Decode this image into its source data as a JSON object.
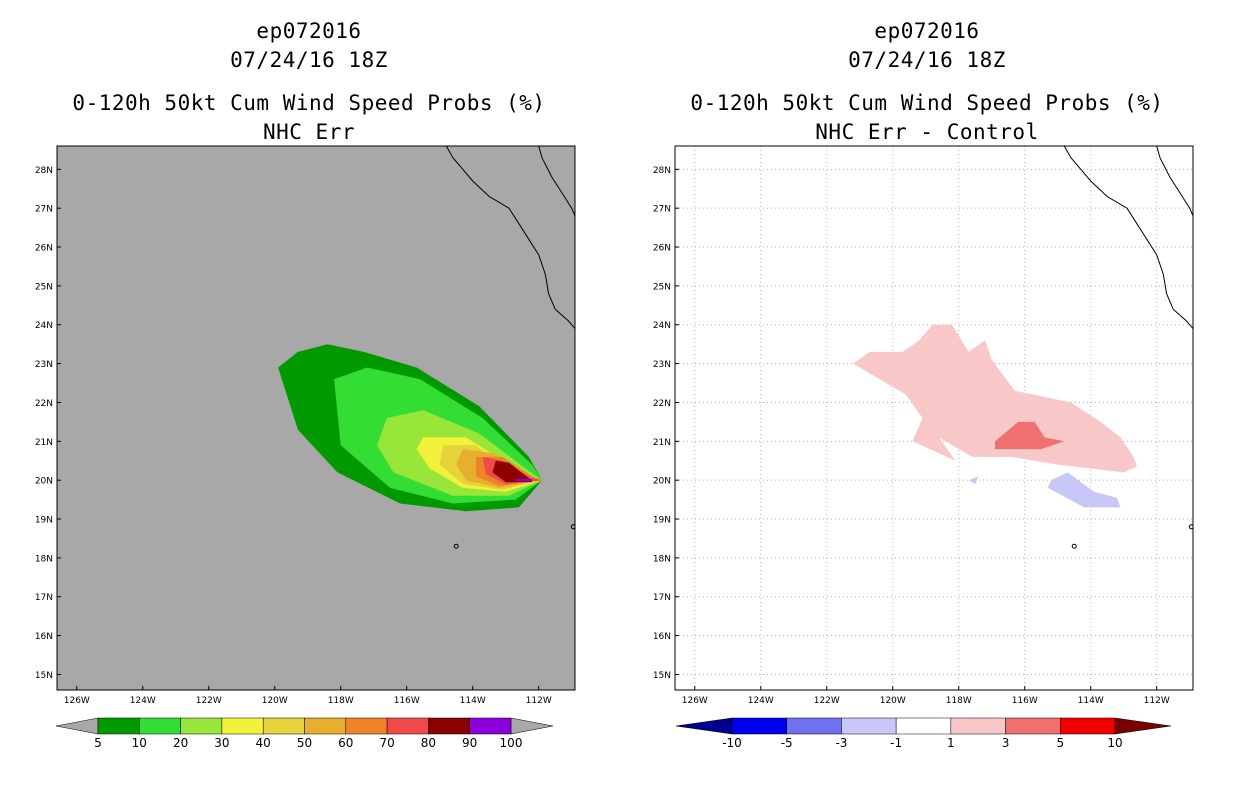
{
  "panels": [
    {
      "id": "left",
      "title_line1": "ep072016",
      "title_line2": "07/24/16 18Z",
      "title_line3": "0-120h 50kt Cum Wind Speed Probs (%)",
      "title_line4": "NHC Err",
      "background_color": "#a8a8a8"
    },
    {
      "id": "right",
      "title_line1": "ep072016",
      "title_line2": "07/24/16 18Z",
      "title_line3": "0-120h 50kt Cum Wind Speed Probs (%)",
      "title_line4": "NHC Err - Control",
      "background_color": "#ffffff"
    }
  ],
  "chart_data": [
    {
      "type": "heatmap",
      "title": "0-120h 50kt Cum Wind Speed Probs (%)",
      "subtitle": "NHC Err",
      "storm": "ep072016",
      "time": "07/24/16 18Z",
      "x_axis": {
        "range": [
          -126.6,
          -110.9
        ],
        "ticks": [
          -126,
          -124,
          -122,
          -120,
          -118,
          -116,
          -114,
          -112
        ],
        "tick_labels": [
          "126W",
          "124W",
          "122W",
          "120W",
          "118W",
          "116W",
          "114W",
          "112W"
        ]
      },
      "y_axis": {
        "range": [
          14.6,
          28.6
        ],
        "ticks": [
          15,
          16,
          17,
          18,
          19,
          20,
          21,
          22,
          23,
          24,
          25,
          26,
          27,
          28
        ],
        "tick_labels": [
          "15N",
          "16N",
          "17N",
          "18N",
          "19N",
          "20N",
          "21N",
          "22N",
          "23N",
          "24N",
          "25N",
          "26N",
          "27N",
          "28N"
        ]
      },
      "grid": false,
      "colorbar": {
        "labels": [
          "5",
          "10",
          "20",
          "30",
          "40",
          "50",
          "60",
          "70",
          "80",
          "90",
          "100"
        ],
        "colors": [
          "#009900",
          "#33dd33",
          "#99e63a",
          "#f2f23a",
          "#e6d23a",
          "#e6af2d",
          "#f08228",
          "#f04a4a",
          "#8c0000",
          "#8c00dc"
        ],
        "under_color": "#a8a8a8",
        "over_color": "#a8a8a8"
      },
      "contours": [
        {
          "level": 5,
          "color": "#009900",
          "points": [
            [
              -119.9,
              22.9
            ],
            [
              -119.3,
              23.3
            ],
            [
              -118.4,
              23.5
            ],
            [
              -117.3,
              23.3
            ],
            [
              -115.7,
              22.9
            ],
            [
              -113.8,
              21.9
            ],
            [
              -112.3,
              20.6
            ],
            [
              -111.9,
              20.0
            ],
            [
              -112.6,
              19.3
            ],
            [
              -114.2,
              19.2
            ],
            [
              -116.2,
              19.4
            ],
            [
              -118.1,
              20.2
            ],
            [
              -119.3,
              21.3
            ]
          ]
        },
        {
          "level": 10,
          "color": "#33dd33",
          "points": [
            [
              -118.2,
              22.6
            ],
            [
              -117.2,
              22.9
            ],
            [
              -115.6,
              22.6
            ],
            [
              -113.7,
              21.6
            ],
            [
              -112.2,
              20.4
            ],
            [
              -111.9,
              20.0
            ],
            [
              -112.7,
              19.5
            ],
            [
              -114.6,
              19.4
            ],
            [
              -116.5,
              19.8
            ],
            [
              -118.0,
              20.9
            ]
          ]
        },
        {
          "level": 20,
          "color": "#99e63a",
          "points": [
            [
              -116.6,
              21.6
            ],
            [
              -115.5,
              21.8
            ],
            [
              -113.8,
              21.2
            ],
            [
              -112.4,
              20.3
            ],
            [
              -111.9,
              20.0
            ],
            [
              -112.9,
              19.6
            ],
            [
              -114.6,
              19.6
            ],
            [
              -116.4,
              20.2
            ],
            [
              -116.9,
              20.9
            ]
          ]
        },
        {
          "level": 30,
          "color": "#f2f23a",
          "points": [
            [
              -115.5,
              21.1
            ],
            [
              -114.2,
              21.1
            ],
            [
              -112.7,
              20.3
            ],
            [
              -111.9,
              20.0
            ],
            [
              -113.0,
              19.7
            ],
            [
              -114.3,
              19.8
            ],
            [
              -115.3,
              20.3
            ],
            [
              -115.7,
              20.8
            ]
          ]
        },
        {
          "level": 40,
          "color": "#e6d23a",
          "points": [
            [
              -114.9,
              20.9
            ],
            [
              -113.9,
              20.9
            ],
            [
              -112.8,
              20.2
            ],
            [
              -111.9,
              20.0
            ],
            [
              -113.1,
              19.75
            ],
            [
              -114.3,
              19.9
            ],
            [
              -115.0,
              20.4
            ]
          ]
        },
        {
          "level": 50,
          "color": "#e6af2d",
          "points": [
            [
              -114.3,
              20.8
            ],
            [
              -113.4,
              20.7
            ],
            [
              -112.5,
              20.2
            ],
            [
              -111.9,
              20.0
            ],
            [
              -113.2,
              19.8
            ],
            [
              -114.2,
              20.0
            ],
            [
              -114.5,
              20.4
            ]
          ]
        },
        {
          "level": 60,
          "color": "#f08228",
          "points": [
            [
              -113.9,
              20.6
            ],
            [
              -113.1,
              20.6
            ],
            [
              -112.2,
              20.1
            ],
            [
              -111.9,
              20.0
            ],
            [
              -113.2,
              19.85
            ],
            [
              -113.9,
              20.1
            ]
          ]
        },
        {
          "level": 70,
          "color": "#f04a4a",
          "points": [
            [
              -113.7,
              20.6
            ],
            [
              -113.1,
              20.5
            ],
            [
              -112.2,
              20.05
            ],
            [
              -111.9,
              20.0
            ],
            [
              -113.0,
              19.9
            ],
            [
              -113.6,
              20.15
            ]
          ]
        },
        {
          "level": 80,
          "color": "#8c0000",
          "points": [
            [
              -113.3,
              20.5
            ],
            [
              -112.9,
              20.45
            ],
            [
              -112.3,
              20.05
            ],
            [
              -112.2,
              19.95
            ],
            [
              -113.0,
              19.95
            ],
            [
              -113.4,
              20.2
            ]
          ]
        },
        {
          "level": 90,
          "color": "#8c00dc",
          "points": [
            [
              -112.7,
              20.03
            ],
            [
              -112.2,
              20.03
            ],
            [
              -112.2,
              19.97
            ],
            [
              -112.7,
              19.97
            ]
          ]
        }
      ]
    },
    {
      "type": "heatmap",
      "title": "0-120h 50kt Cum Wind Speed Probs (%)",
      "subtitle": "NHC Err - Control",
      "storm": "ep072016",
      "time": "07/24/16 18Z",
      "x_axis": {
        "range": [
          -126.6,
          -110.9
        ],
        "ticks": [
          -126,
          -124,
          -122,
          -120,
          -118,
          -116,
          -114,
          -112
        ],
        "tick_labels": [
          "126W",
          "124W",
          "122W",
          "120W",
          "118W",
          "116W",
          "114W",
          "112W"
        ]
      },
      "y_axis": {
        "range": [
          14.6,
          28.6
        ],
        "ticks": [
          15,
          16,
          17,
          18,
          19,
          20,
          21,
          22,
          23,
          24,
          25,
          26,
          27,
          28
        ],
        "tick_labels": [
          "15N",
          "16N",
          "17N",
          "18N",
          "19N",
          "20N",
          "21N",
          "22N",
          "23N",
          "24N",
          "25N",
          "26N",
          "27N",
          "28N"
        ]
      },
      "grid": true,
      "colorbar": {
        "labels": [
          "-10",
          "-5",
          "-3",
          "-1",
          "1",
          "3",
          "5",
          "10"
        ],
        "colors": [
          "#0000f0",
          "#7070f0",
          "#c8c8f8",
          "#ffffff",
          "#f8c8c8",
          "#f07070",
          "#f00000"
        ],
        "under_color": "#000090",
        "over_color": "#780000"
      },
      "contours": [
        {
          "level": 1,
          "color": "#f8c8c8",
          "points": [
            [
              -121.2,
              23.0
            ],
            [
              -120.7,
              23.3
            ],
            [
              -119.7,
              23.3
            ],
            [
              -119.2,
              23.6
            ],
            [
              -118.8,
              24.0
            ],
            [
              -118.2,
              24.0
            ],
            [
              -117.7,
              23.3
            ],
            [
              -117.2,
              23.6
            ],
            [
              -117.0,
              23.1
            ],
            [
              -116.3,
              22.3
            ],
            [
              -114.6,
              22.0
            ],
            [
              -113.7,
              21.5
            ],
            [
              -113.1,
              21.1
            ],
            [
              -112.7,
              20.6
            ],
            [
              -112.6,
              20.35
            ],
            [
              -113.0,
              20.2
            ],
            [
              -114.0,
              20.3
            ],
            [
              -115.0,
              20.4
            ],
            [
              -116.4,
              20.6
            ],
            [
              -117.6,
              20.6
            ],
            [
              -118.6,
              21.1
            ],
            [
              -118.1,
              20.5
            ],
            [
              -119.4,
              21.0
            ],
            [
              -119.1,
              21.6
            ],
            [
              -119.6,
              22.2
            ],
            [
              -120.6,
              22.7
            ]
          ]
        },
        {
          "level": 3,
          "color": "#f07070",
          "points": [
            [
              -116.9,
              21.0
            ],
            [
              -116.2,
              21.5
            ],
            [
              -115.7,
              21.5
            ],
            [
              -115.4,
              21.1
            ],
            [
              -114.8,
              21.0
            ],
            [
              -115.5,
              20.8
            ],
            [
              -116.9,
              20.8
            ]
          ]
        },
        {
          "level": -1,
          "color": "#c8c8f8",
          "points": [
            [
              -115.2,
              20.0
            ],
            [
              -114.7,
              20.2
            ],
            [
              -113.9,
              19.7
            ],
            [
              -113.2,
              19.55
            ],
            [
              -113.1,
              19.3
            ],
            [
              -114.2,
              19.3
            ],
            [
              -115.3,
              19.8
            ]
          ]
        },
        {
          "level": -1,
          "color": "#c8c8f8",
          "points": [
            [
              -117.7,
              20.0
            ],
            [
              -117.4,
              20.1
            ],
            [
              -117.5,
              19.9
            ]
          ]
        }
      ]
    }
  ]
}
